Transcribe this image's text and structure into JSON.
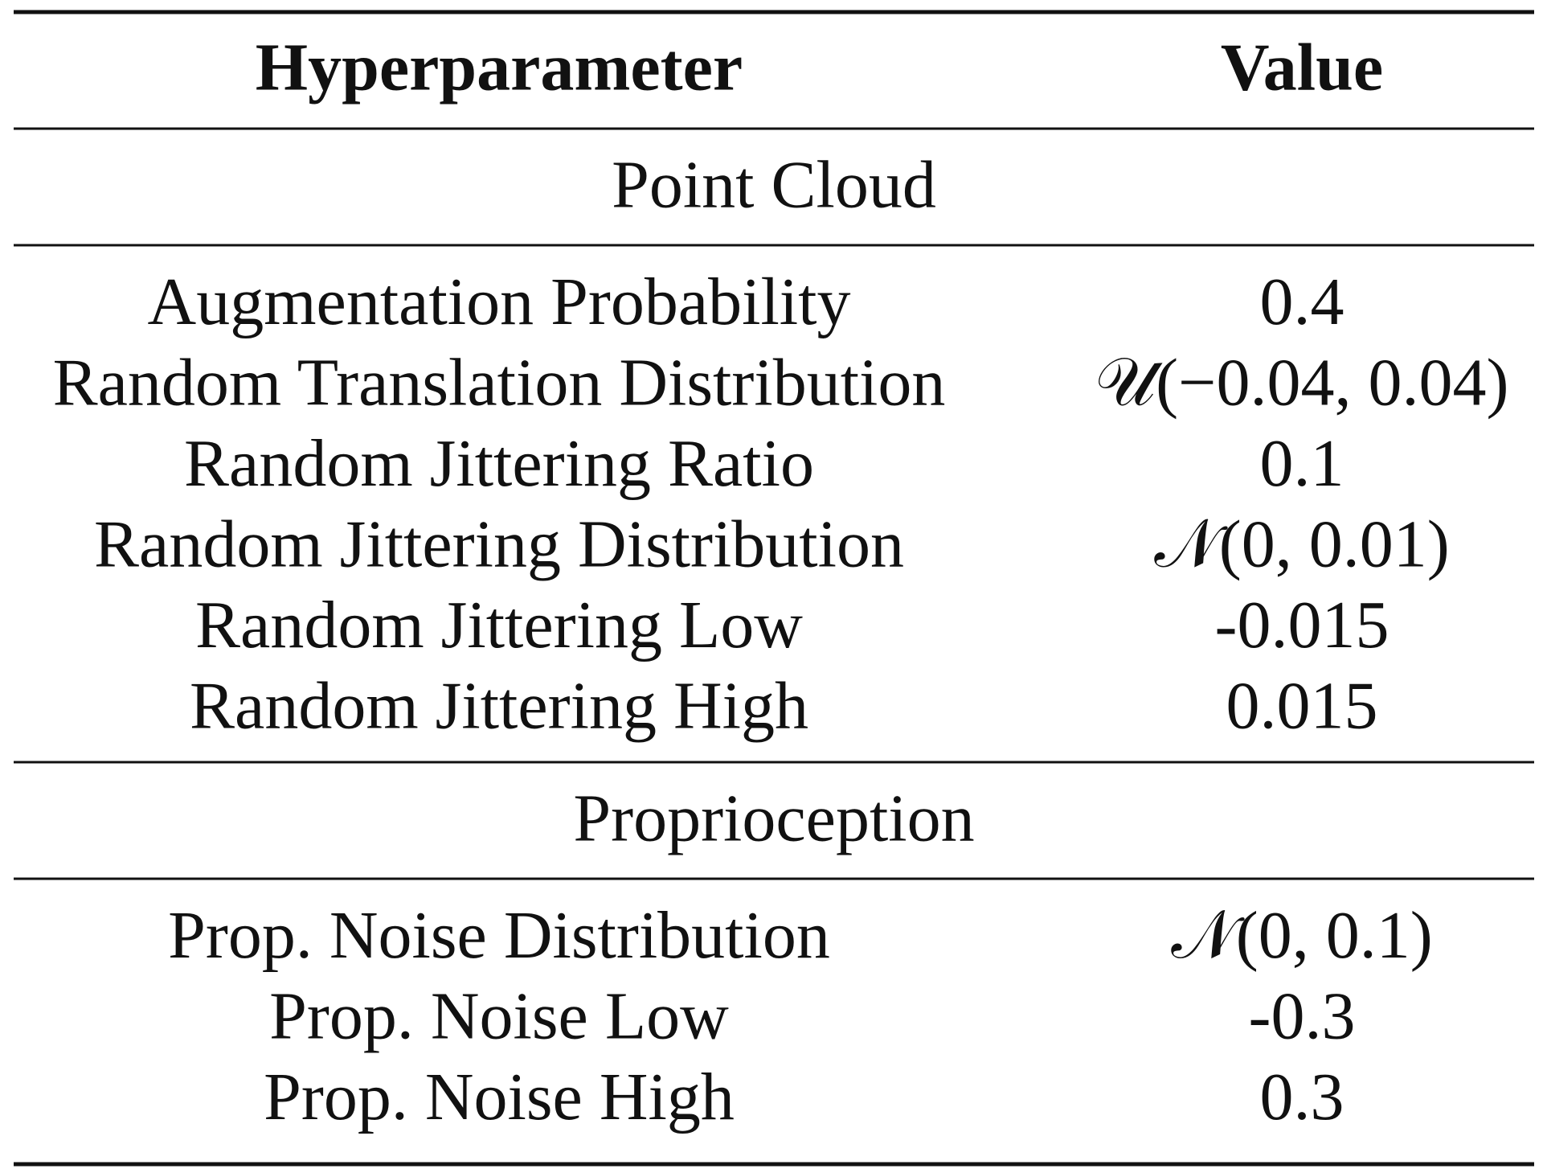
{
  "table": {
    "header": [
      "Hyperparameter",
      "Value"
    ],
    "sections": [
      {
        "title": "Point Cloud",
        "rows": [
          [
            "Augmentation Probability",
            "0.4"
          ],
          [
            "Random Translation Distribution",
            "𝒰(−0.04, 0.04)"
          ],
          [
            "Random Jittering Ratio",
            "0.1"
          ],
          [
            "Random Jittering Distribution",
            "𝒩(0, 0.01)"
          ],
          [
            "Random Jittering Low",
            "-0.015"
          ],
          [
            "Random Jittering High",
            "0.015"
          ]
        ]
      },
      {
        "title": "Proprioception",
        "rows": [
          [
            "Prop. Noise Distribution",
            "𝒩(0, 0.1)"
          ],
          [
            "Prop. Noise Low",
            "-0.3"
          ],
          [
            "Prop. Noise High",
            "0.3"
          ]
        ]
      }
    ]
  }
}
